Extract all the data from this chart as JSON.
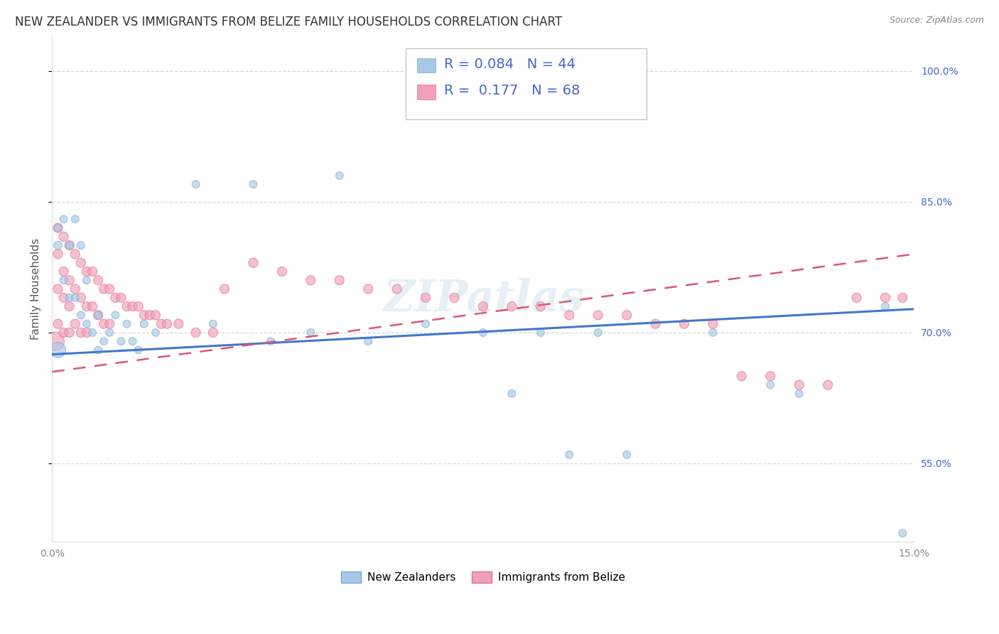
{
  "title": "NEW ZEALANDER VS IMMIGRANTS FROM BELIZE FAMILY HOUSEHOLDS CORRELATION CHART",
  "source": "Source: ZipAtlas.com",
  "ylabel": "Family Households",
  "xlim": [
    0.0,
    0.15
  ],
  "ylim": [
    0.46,
    1.04
  ],
  "yticks": [
    0.55,
    0.7,
    0.85,
    1.0
  ],
  "ytick_labels": [
    "55.0%",
    "70.0%",
    "85.0%",
    "100.0%"
  ],
  "legend_blue_r": "0.084",
  "legend_blue_n": "44",
  "legend_pink_r": "0.177",
  "legend_pink_n": "68",
  "blue_color": "#a8c8e8",
  "pink_color": "#f0a0b8",
  "blue_edge_color": "#7aaad0",
  "pink_edge_color": "#e07090",
  "blue_line_color": "#4477cc",
  "pink_line_color": "#dd5577",
  "legend_text_color": "#4466cc",
  "watermark": "ZIPatlas",
  "background_color": "#ffffff",
  "grid_color": "#cccccc",
  "title_fontsize": 12,
  "axis_label_fontsize": 11,
  "tick_fontsize": 10,
  "legend_fontsize": 14,
  "blue_line": {
    "x0": 0.0,
    "x1": 0.15,
    "y0": 0.675,
    "y1": 0.727
  },
  "pink_line": {
    "x0": 0.0,
    "x1": 0.15,
    "y0": 0.655,
    "y1": 0.79
  },
  "blue_x": [
    0.001,
    0.001,
    0.001,
    0.002,
    0.002,
    0.003,
    0.003,
    0.004,
    0.004,
    0.005,
    0.005,
    0.006,
    0.006,
    0.007,
    0.008,
    0.008,
    0.009,
    0.01,
    0.011,
    0.012,
    0.013,
    0.014,
    0.015,
    0.016,
    0.018,
    0.025,
    0.028,
    0.035,
    0.038,
    0.045,
    0.05,
    0.055,
    0.065,
    0.075,
    0.08,
    0.085,
    0.09,
    0.095,
    0.1,
    0.115,
    0.125,
    0.13,
    0.145,
    0.148
  ],
  "blue_y": [
    0.8,
    0.82,
    0.68,
    0.83,
    0.76,
    0.8,
    0.74,
    0.83,
    0.74,
    0.8,
    0.72,
    0.76,
    0.71,
    0.7,
    0.72,
    0.68,
    0.69,
    0.7,
    0.72,
    0.69,
    0.71,
    0.69,
    0.68,
    0.71,
    0.7,
    0.87,
    0.71,
    0.87,
    0.69,
    0.7,
    0.88,
    0.69,
    0.71,
    0.7,
    0.63,
    0.7,
    0.56,
    0.7,
    0.56,
    0.7,
    0.64,
    0.63,
    0.73,
    0.47
  ],
  "blue_sizes": [
    70,
    60,
    250,
    60,
    60,
    60,
    60,
    60,
    60,
    60,
    60,
    60,
    60,
    60,
    60,
    60,
    60,
    60,
    60,
    60,
    60,
    60,
    60,
    60,
    60,
    60,
    60,
    60,
    60,
    60,
    60,
    60,
    60,
    60,
    60,
    60,
    60,
    60,
    60,
    60,
    60,
    60,
    60,
    60
  ],
  "pink_x": [
    0.0005,
    0.001,
    0.001,
    0.001,
    0.001,
    0.002,
    0.002,
    0.002,
    0.002,
    0.003,
    0.003,
    0.003,
    0.003,
    0.004,
    0.004,
    0.004,
    0.005,
    0.005,
    0.005,
    0.006,
    0.006,
    0.006,
    0.007,
    0.007,
    0.008,
    0.008,
    0.009,
    0.009,
    0.01,
    0.01,
    0.011,
    0.012,
    0.013,
    0.014,
    0.015,
    0.016,
    0.017,
    0.018,
    0.019,
    0.02,
    0.022,
    0.025,
    0.028,
    0.03,
    0.035,
    0.04,
    0.045,
    0.05,
    0.055,
    0.06,
    0.065,
    0.07,
    0.075,
    0.08,
    0.085,
    0.09,
    0.095,
    0.1,
    0.105,
    0.11,
    0.115,
    0.12,
    0.125,
    0.13,
    0.135,
    0.14,
    0.145,
    0.148
  ],
  "pink_y": [
    0.69,
    0.82,
    0.79,
    0.75,
    0.71,
    0.81,
    0.77,
    0.74,
    0.7,
    0.8,
    0.76,
    0.73,
    0.7,
    0.79,
    0.75,
    0.71,
    0.78,
    0.74,
    0.7,
    0.77,
    0.73,
    0.7,
    0.77,
    0.73,
    0.76,
    0.72,
    0.75,
    0.71,
    0.75,
    0.71,
    0.74,
    0.74,
    0.73,
    0.73,
    0.73,
    0.72,
    0.72,
    0.72,
    0.71,
    0.71,
    0.71,
    0.7,
    0.7,
    0.75,
    0.78,
    0.77,
    0.76,
    0.76,
    0.75,
    0.75,
    0.74,
    0.74,
    0.73,
    0.73,
    0.73,
    0.72,
    0.72,
    0.72,
    0.71,
    0.71,
    0.71,
    0.65,
    0.65,
    0.64,
    0.64,
    0.74,
    0.74,
    0.74
  ],
  "pink_sizes": [
    350,
    90,
    90,
    90,
    90,
    90,
    90,
    90,
    90,
    90,
    90,
    90,
    90,
    90,
    90,
    90,
    90,
    90,
    90,
    90,
    90,
    90,
    90,
    90,
    90,
    90,
    90,
    90,
    90,
    90,
    90,
    90,
    90,
    90,
    90,
    90,
    90,
    90,
    90,
    90,
    90,
    90,
    90,
    90,
    90,
    90,
    90,
    90,
    90,
    90,
    90,
    90,
    90,
    90,
    90,
    90,
    90,
    90,
    90,
    90,
    90,
    90,
    90,
    90,
    90,
    90,
    90,
    90
  ]
}
